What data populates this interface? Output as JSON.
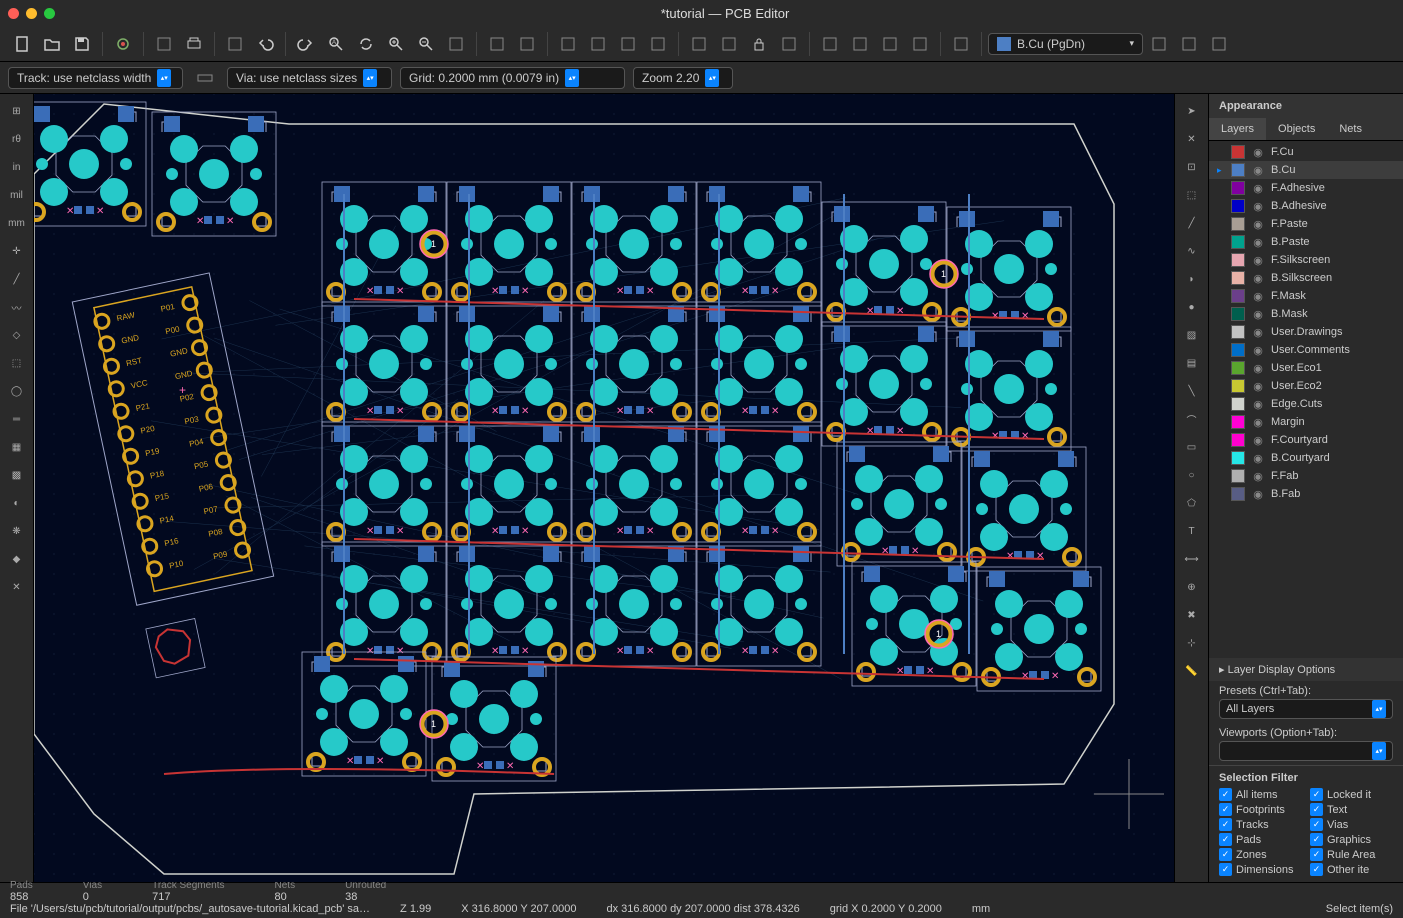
{
  "window": {
    "title": "*tutorial — PCB Editor"
  },
  "traffic_colors": [
    "#ff5f57",
    "#febc2e",
    "#28c840"
  ],
  "main_toolbar_icons": [
    "new-file",
    "open-file",
    "save",
    "settings",
    "page-setup",
    "print",
    "plot",
    "undo",
    "redo",
    "find",
    "refresh",
    "zoom-in",
    "zoom-out",
    "zoom-fit",
    "zoom-selection",
    "zoom-tool",
    "rotate-ccw",
    "rotate-cw",
    "flip",
    "mirror",
    "group",
    "ungroup",
    "lock",
    "unlock",
    "footprint-wizard",
    "footprint-lib",
    "net-inspector",
    "drc",
    "grid"
  ],
  "layer_selector": {
    "color": "#4d7fc4",
    "text": "B.Cu (PgDn)"
  },
  "tail_icons": [
    "hatch",
    "scripting",
    "console"
  ],
  "options_bar": {
    "track": "Track: use netclass width",
    "via": "Via: use netclass sizes",
    "grid": "Grid: 0.2000 mm (0.0079 in)",
    "zoom": "Zoom 2.20"
  },
  "left_tools": [
    {
      "name": "grid-toggle",
      "label": "⊞"
    },
    {
      "name": "polar-coord",
      "label": "rθ"
    },
    {
      "name": "units-in",
      "label": "in"
    },
    {
      "name": "units-mil",
      "label": "mil"
    },
    {
      "name": "units-mm",
      "label": "mm"
    },
    {
      "name": "cursor-full",
      "label": "✛"
    },
    {
      "name": "ratsnest",
      "label": "╱"
    },
    {
      "name": "ratsnest-curved",
      "label": "〰"
    },
    {
      "name": "outline-mode",
      "label": "◇"
    },
    {
      "name": "pad-outline",
      "label": "⬚"
    },
    {
      "name": "via-outline",
      "label": "◯"
    },
    {
      "name": "track-outline",
      "label": "═"
    },
    {
      "name": "zone-outline",
      "label": "▦"
    },
    {
      "name": "zone-fill",
      "label": "▩"
    },
    {
      "name": "contrast",
      "label": "◐"
    },
    {
      "name": "net-color",
      "label": "❋"
    },
    {
      "name": "layers-mgr",
      "label": "◆"
    },
    {
      "name": "prefs",
      "label": "✕"
    }
  ],
  "right_tools": [
    {
      "name": "select",
      "label": "➤"
    },
    {
      "name": "highlight-net",
      "label": "✕"
    },
    {
      "name": "local-ratsnest",
      "label": "⊡"
    },
    {
      "name": "place-footprint",
      "label": "⬚"
    },
    {
      "name": "route-track",
      "label": "╱"
    },
    {
      "name": "route-diff",
      "label": "∿"
    },
    {
      "name": "tune-length",
      "label": "◗"
    },
    {
      "name": "place-via",
      "label": "●"
    },
    {
      "name": "place-zone",
      "label": "▨"
    },
    {
      "name": "place-rule",
      "label": "▤"
    },
    {
      "name": "draw-line",
      "label": "╲"
    },
    {
      "name": "draw-arc",
      "label": "⌒"
    },
    {
      "name": "draw-rect",
      "label": "▭"
    },
    {
      "name": "draw-circle",
      "label": "○"
    },
    {
      "name": "draw-poly",
      "label": "⬠"
    },
    {
      "name": "place-text",
      "label": "T"
    },
    {
      "name": "place-dim",
      "label": "⟷"
    },
    {
      "name": "place-target",
      "label": "⊕"
    },
    {
      "name": "delete",
      "label": "✖"
    },
    {
      "name": "set-origin",
      "label": "⊹"
    },
    {
      "name": "measure",
      "label": "📏"
    }
  ],
  "appearance": {
    "header": "Appearance",
    "tabs": [
      "Layers",
      "Objects",
      "Nets"
    ],
    "active_tab": 0,
    "layers": [
      {
        "name": "F.Cu",
        "color": "#c83434"
      },
      {
        "name": "B.Cu",
        "color": "#4d7fc4",
        "selected": true,
        "arrow": true
      },
      {
        "name": "F.Adhesive",
        "color": "#8000a0"
      },
      {
        "name": "B.Adhesive",
        "color": "#0000c8"
      },
      {
        "name": "F.Paste",
        "color": "#a89e94"
      },
      {
        "name": "B.Paste",
        "color": "#00a28e"
      },
      {
        "name": "F.Silkscreen",
        "color": "#e6a6b0"
      },
      {
        "name": "B.Silkscreen",
        "color": "#e8b2a7"
      },
      {
        "name": "F.Mask",
        "color": "#6b3f8a"
      },
      {
        "name": "B.Mask",
        "color": "#005f4e"
      },
      {
        "name": "User.Drawings",
        "color": "#c2c2c2"
      },
      {
        "name": "User.Comments",
        "color": "#006ec8"
      },
      {
        "name": "User.Eco1",
        "color": "#5aa52e"
      },
      {
        "name": "User.Eco2",
        "color": "#c8c832"
      },
      {
        "name": "Edge.Cuts",
        "color": "#d0d2cd"
      },
      {
        "name": "Margin",
        "color": "#ff00d4"
      },
      {
        "name": "F.Courtyard",
        "color": "#ff00ce"
      },
      {
        "name": "B.Courtyard",
        "color": "#26e6e6"
      },
      {
        "name": "F.Fab",
        "color": "#afafaf"
      },
      {
        "name": "B.Fab",
        "color": "#585d84"
      }
    ],
    "layer_display": "Layer Display Options",
    "presets_label": "Presets (Ctrl+Tab):",
    "presets_value": "All Layers",
    "viewports_label": "Viewports (Option+Tab):",
    "viewports_value": ""
  },
  "selection_filter": {
    "header": "Selection Filter",
    "items": [
      [
        "All items",
        "Locked it"
      ],
      [
        "Footprints",
        "Text"
      ],
      [
        "Tracks",
        "Vias"
      ],
      [
        "Pads",
        "Graphics"
      ],
      [
        "Zones",
        "Rule Area"
      ],
      [
        "Dimensions",
        "Other ite"
      ]
    ]
  },
  "status_counts": {
    "pads_label": "Pads",
    "pads": "858",
    "vias_label": "Vias",
    "vias": "0",
    "tracks_label": "Track Segments",
    "tracks": "717",
    "nets_label": "Nets",
    "nets": "80",
    "unrouted_label": "Unrouted",
    "unrouted": "38"
  },
  "status_bar": {
    "file": "File '/Users/stu/pcb/tutorial/output/pcbs/_autosave-tutorial.kicad_pcb' sa…",
    "z": "Z 1.99",
    "xy": "X 316.8000  Y 207.0000",
    "dxy": "dx 316.8000  dy 207.0000  dist 378.4326",
    "grid": "grid X 0.2000  Y 0.2000",
    "units": "mm",
    "hint": "Select item(s)"
  },
  "canvas": {
    "bg": "#02091f",
    "board_outline_color": "#d0d2cd",
    "courtyard_color": "#9fa6c9",
    "pad_teal": "#26c9c9",
    "pad_gold": "#daa520",
    "pad_blue": "#3a6db8",
    "track_red": "#c83434",
    "track_blue": "#4d7fc4",
    "ratsnest": "#2a4a6a",
    "pink_cross": "#ff69b4",
    "mcu": {
      "pins_left": [
        "RAW",
        "GND",
        "RST",
        "VCC",
        "P21",
        "P20",
        "P19",
        "P18",
        "P15",
        "P14",
        "P16",
        "P10"
      ],
      "pins_right": [
        "P01",
        "P00",
        "GND",
        "GND",
        "P02",
        "P03",
        "P04",
        "P05",
        "P06",
        "P07",
        "P08",
        "P09"
      ]
    },
    "switch_grid": {
      "cols": 6,
      "rows": 4
    }
  }
}
